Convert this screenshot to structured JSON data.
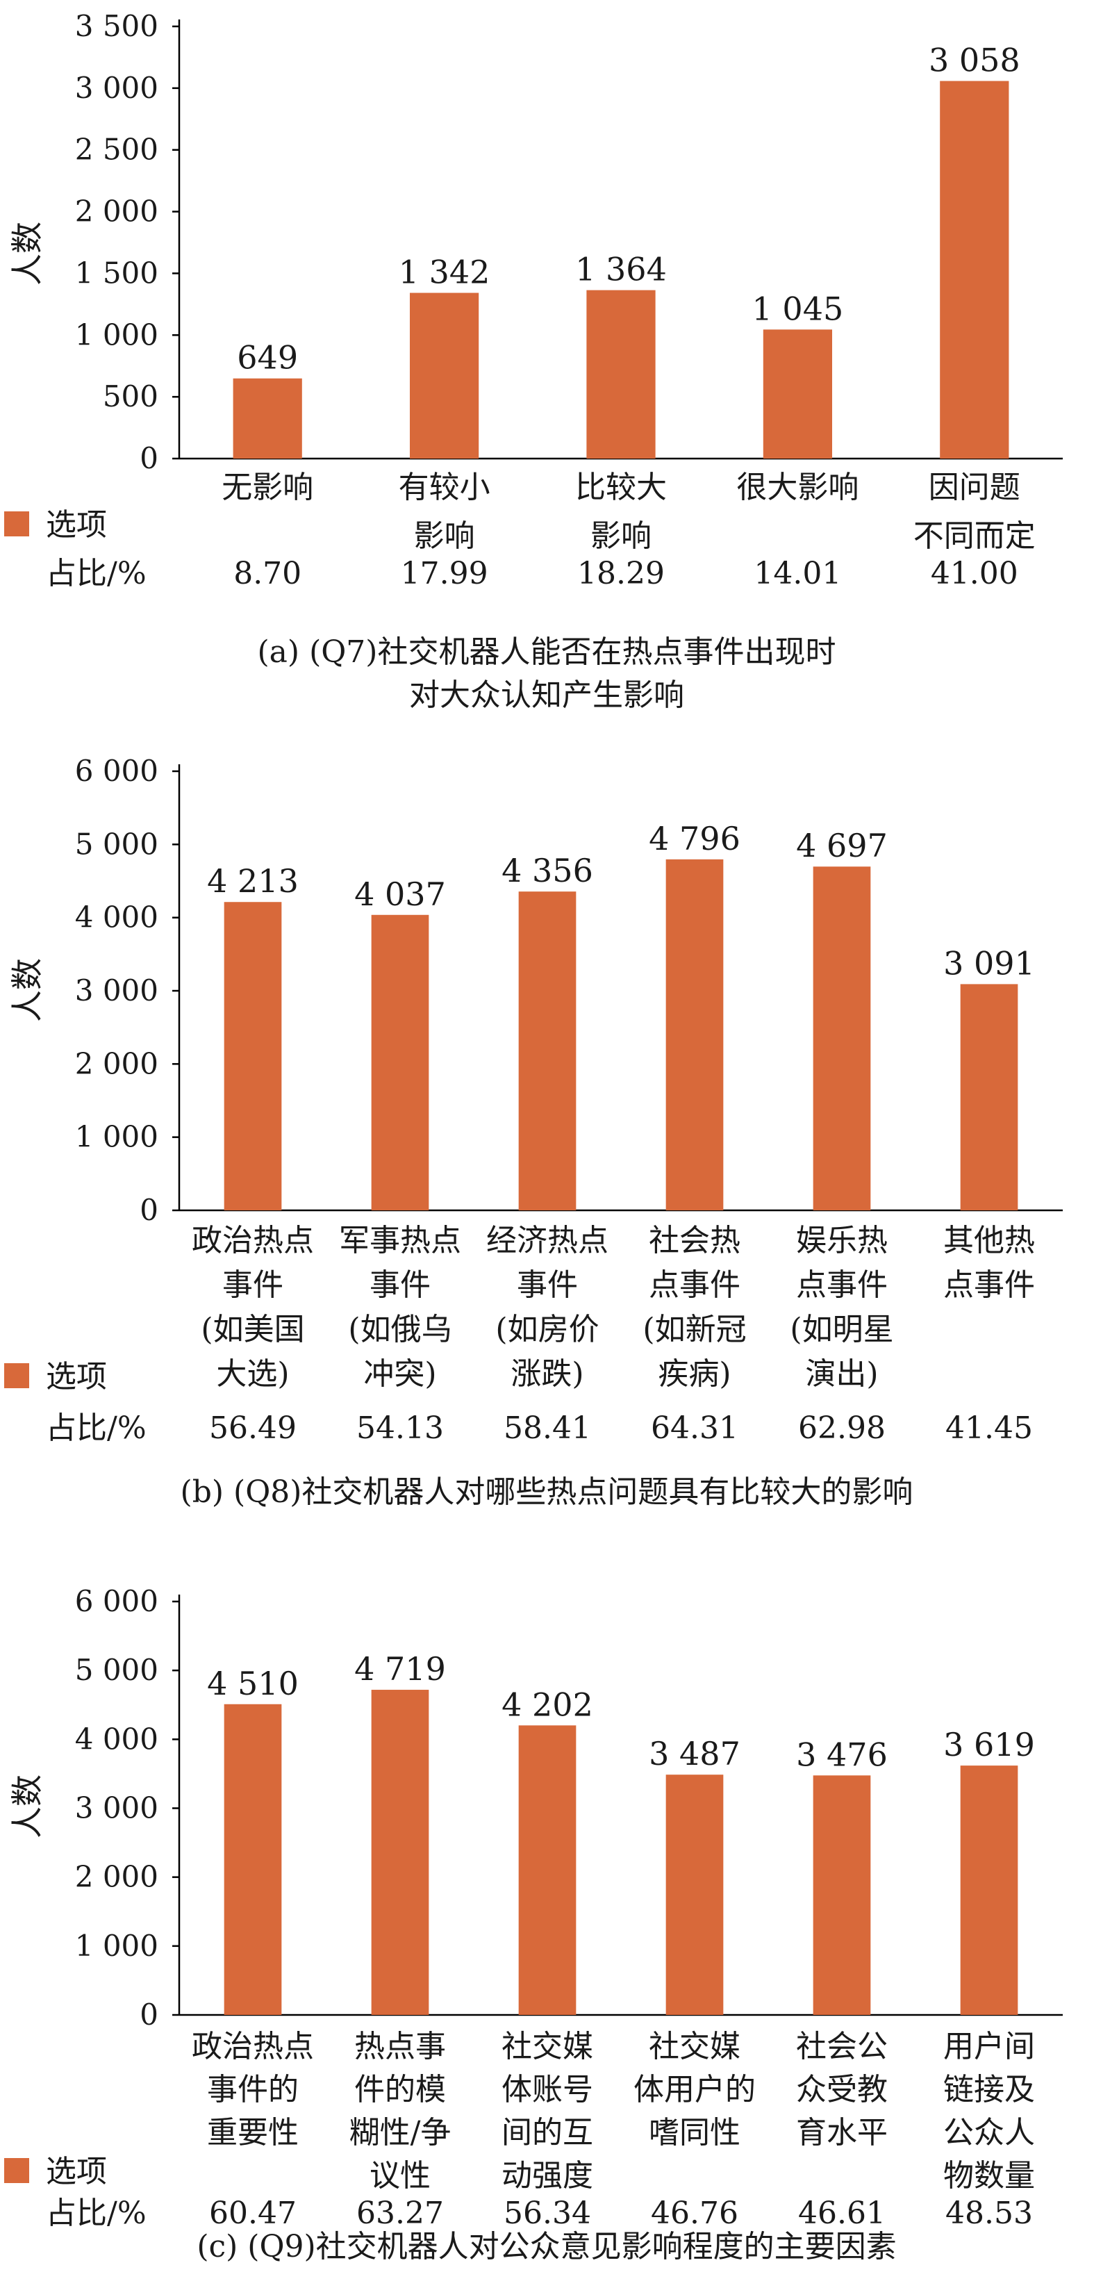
{
  "legend": {
    "label": "选项",
    "pct_label": "占比/%",
    "color": "#D8693A"
  },
  "chart_data": [
    {
      "type": "bar",
      "caption_lines": [
        "(a) (Q7)社交机器人能否在热点事件出现时",
        "对大众认知产生影响"
      ],
      "ylabel": "人数",
      "ylim": [
        0,
        3500
      ],
      "yticks": [
        0,
        500,
        1000,
        1500,
        2000,
        2500,
        3000,
        3500
      ],
      "ytick_labels": [
        "0",
        "500",
        "1 000",
        "1 500",
        "2 000",
        "2 500",
        "3 000",
        "3 500"
      ],
      "categories": [
        [
          "无影响"
        ],
        [
          "有较小",
          "影响"
        ],
        [
          "比较大",
          "影响"
        ],
        [
          "很大影响"
        ],
        [
          "因问题",
          "不同而定"
        ]
      ],
      "values": [
        649,
        1342,
        1364,
        1045,
        3058
      ],
      "value_labels": [
        "649",
        "1 342",
        "1 364",
        "1 045",
        "3 058"
      ],
      "percentages": [
        "8.70",
        "17.99",
        "18.29",
        "14.01",
        "41.00"
      ]
    },
    {
      "type": "bar",
      "caption_lines": [
        "(b) (Q8)社交机器人对哪些热点问题具有比较大的影响"
      ],
      "ylabel": "人数",
      "ylim": [
        0,
        6000
      ],
      "yticks": [
        0,
        1000,
        2000,
        3000,
        4000,
        5000,
        6000
      ],
      "ytick_labels": [
        "0",
        "1 000",
        "2 000",
        "3 000",
        "4 000",
        "5 000",
        "6 000"
      ],
      "categories": [
        [
          "政治热点",
          "事件",
          "(如美国",
          "大选)"
        ],
        [
          "军事热点",
          "事件",
          "(如俄乌",
          "冲突)"
        ],
        [
          "经济热点",
          "事件",
          "(如房价",
          "涨跌)"
        ],
        [
          "社会热",
          "点事件",
          "(如新冠",
          "疾病)"
        ],
        [
          "娱乐热",
          "点事件",
          "(如明星",
          "演出)"
        ],
        [
          "其他热",
          "点事件"
        ]
      ],
      "values": [
        4213,
        4037,
        4356,
        4796,
        4697,
        3091
      ],
      "value_labels": [
        "4 213",
        "4 037",
        "4 356",
        "4 796",
        "4 697",
        "3 091"
      ],
      "percentages": [
        "56.49",
        "54.13",
        "58.41",
        "64.31",
        "62.98",
        "41.45"
      ]
    },
    {
      "type": "bar",
      "caption_lines": [
        "(c) (Q9)社交机器人对公众意见影响程度的主要因素"
      ],
      "ylabel": "人数",
      "ylim": [
        0,
        6000
      ],
      "yticks": [
        0,
        1000,
        2000,
        3000,
        4000,
        5000,
        6000
      ],
      "ytick_labels": [
        "0",
        "1 000",
        "2 000",
        "3 000",
        "4 000",
        "5 000",
        "6 000"
      ],
      "categories": [
        [
          "政治热点",
          "事件的",
          "重要性"
        ],
        [
          "热点事",
          "件的模",
          "糊性/争",
          "议性"
        ],
        [
          "社交媒",
          "体账号",
          "间的互",
          "动强度"
        ],
        [
          "社交媒",
          "体用户的",
          "嗜同性"
        ],
        [
          "社会公",
          "众受教",
          "育水平"
        ],
        [
          "用户间",
          "链接及",
          "公众人",
          "物数量"
        ]
      ],
      "values": [
        4510,
        4719,
        4202,
        3487,
        3476,
        3619
      ],
      "value_labels": [
        "4 510",
        "4 719",
        "4 202",
        "3 487",
        "3 476",
        "3 619"
      ],
      "percentages": [
        "60.47",
        "63.27",
        "56.34",
        "46.76",
        "46.61",
        "48.53"
      ]
    }
  ]
}
